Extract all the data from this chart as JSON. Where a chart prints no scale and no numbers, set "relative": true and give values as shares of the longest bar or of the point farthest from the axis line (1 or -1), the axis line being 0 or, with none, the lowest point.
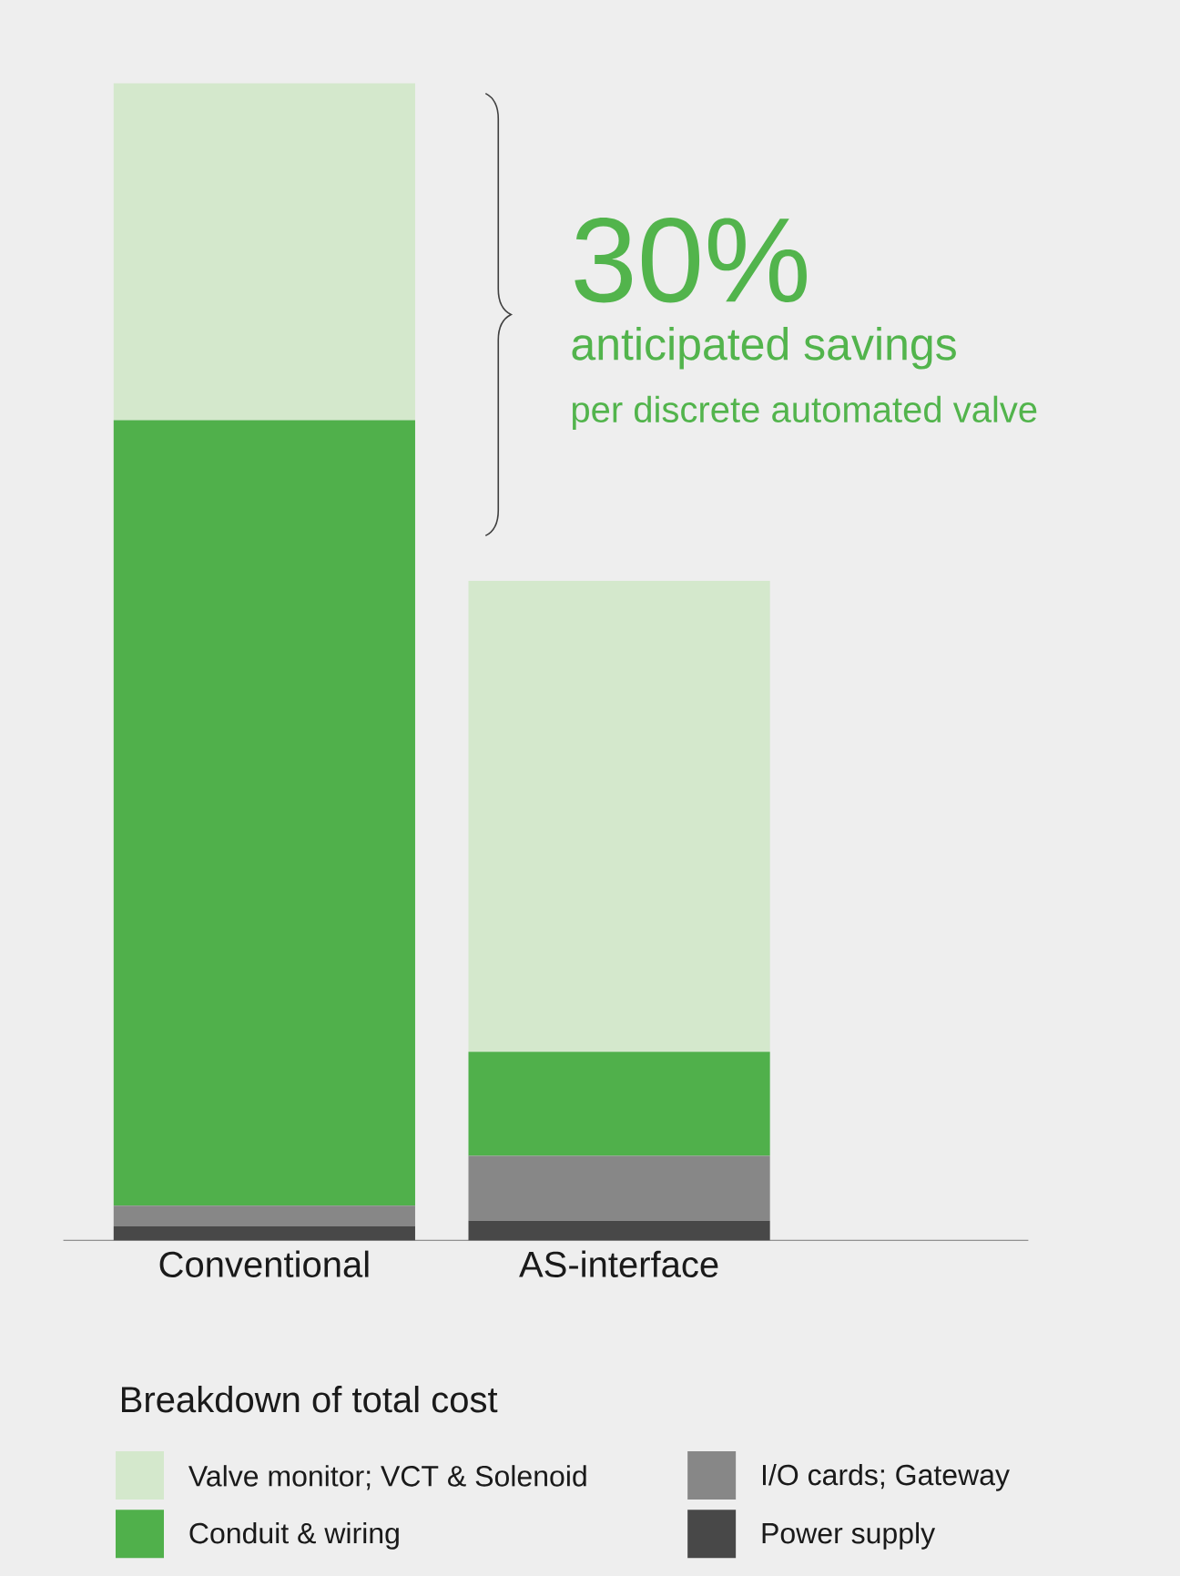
{
  "chart_data": {
    "type": "bar",
    "stacked": true,
    "relative": true,
    "tick_labels": "x",
    "legend": "bottom",
    "legend_title": "Breakdown of total cost",
    "categories": [
      "Conventional",
      "AS-interface"
    ],
    "series": [
      {
        "name": "Power supply",
        "color": "#484848",
        "values": [
          0.012,
          0.017
        ]
      },
      {
        "name": "I/O cards; Gateway",
        "color": "#878787",
        "values": [
          0.018,
          0.056
        ]
      },
      {
        "name": "Conduit & wiring",
        "color": "#50b04b",
        "values": [
          0.679,
          0.09
        ]
      },
      {
        "name": "Valve monitor; VCT & Solenoid",
        "color": "#d4e8cc",
        "values": [
          0.291,
          0.407
        ]
      }
    ],
    "annotations": [
      "30%",
      "anticipated savings",
      "per discrete automated valve"
    ]
  }
}
